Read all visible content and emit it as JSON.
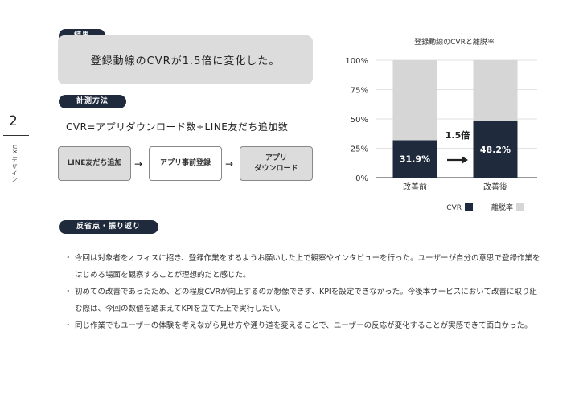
{
  "side": {
    "number": "2",
    "label": "UX\nデザイン"
  },
  "result": {
    "tag": "結果",
    "text": "登録動線のCVRが1.5倍に変化した。"
  },
  "measure": {
    "tag": "計測方法",
    "formula": "CVR=アプリダウンロード数÷LINE友だち追加数",
    "steps": [
      "LINE友だち追加",
      "アプリ事前登録",
      "アプリ\nダウンロード"
    ]
  },
  "reflection": {
    "tag": "反省点・振り返り",
    "items": [
      "今回は対象者をオフィスに招き、登録作業をするようお願いした上で観察やインタビューを行った。ユーザーが自分の意思で登録作業をはじめる場面を観察することが理想的だと感じた。",
      "初めての改善であったため、どの程度CVRが向上するのか想像できず、KPIを設定できなかった。今後本サービスにおいて改善に取り組む際は、今回の数値を踏まえてKPIを立てた上で実行したい。",
      "同じ作業でもユーザーの体験を考えながら見せ方や通り道を変えることで、ユーザーの反応が変化することが実感できて面白かった。"
    ]
  },
  "colors": {
    "dark": "#1f2a3d",
    "light": "#d6d6d6",
    "box": "#dcdcdc"
  },
  "chart_data": {
    "type": "bar",
    "stacked": true,
    "title": "登録動線のCVRと離脱率",
    "categories": [
      "改善前",
      "改善後"
    ],
    "series": [
      {
        "name": "CVR",
        "values": [
          31.9,
          48.2
        ],
        "labels": [
          "31.9%",
          "48.2%"
        ],
        "color": "#1f2a3d"
      },
      {
        "name": "離脱率",
        "values": [
          68.1,
          51.8
        ],
        "color": "#d6d6d6"
      }
    ],
    "yticks": [
      "0%",
      "25%",
      "50%",
      "75%",
      "100%"
    ],
    "ylim": [
      0,
      100
    ],
    "annotation": "1.5倍",
    "legend": "bottom-right",
    "grid": true
  }
}
